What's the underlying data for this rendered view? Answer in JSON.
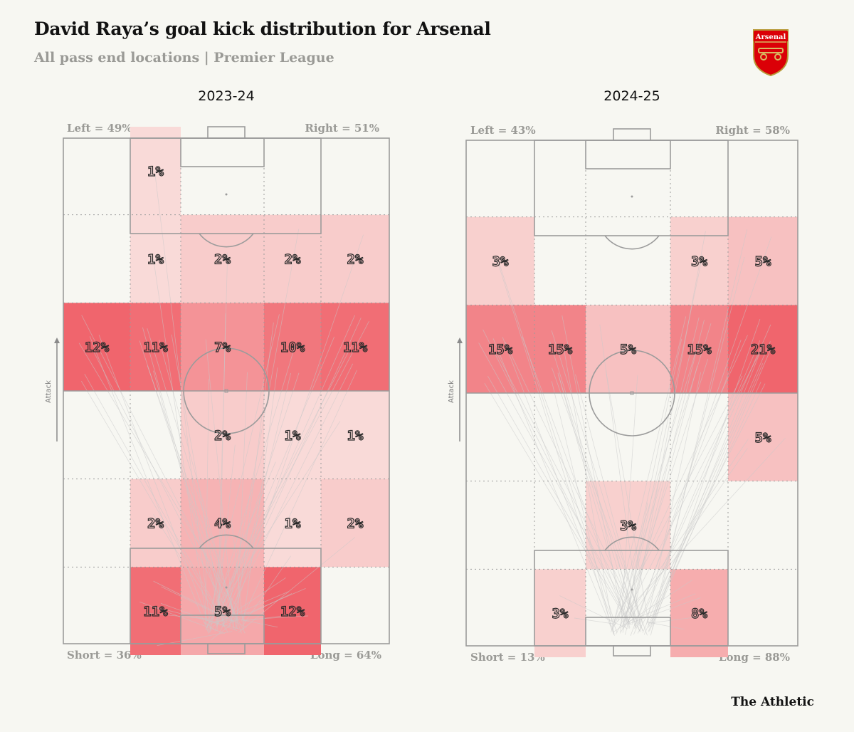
{
  "header": {
    "title": "David Raya’s goal kick distribution for Arsenal",
    "subtitle": "All pass end locations | Premier League",
    "badge_text": "Arsenal",
    "brand": "The Athletic",
    "attack_label": "Attack"
  },
  "colors": {
    "background": "#f7f7f2",
    "line": "#9b9b9b",
    "heat_max": "#f0656d",
    "heat_min": "#fbf0ec",
    "arrow": "#c9c9c9",
    "badge_red": "#db0007"
  },
  "chart_data": [
    {
      "type": "heatmap",
      "season": "2023-24",
      "left_label": "Left = 49%",
      "right_label": "Right = 51%",
      "short_label": "Short = 36%",
      "long_label": "Long = 64%",
      "columns": 5,
      "rows": 6,
      "row_order": "top (attacking end) to bottom (own goal)",
      "cells": [
        [
          "",
          "1%",
          "",
          "",
          ""
        ],
        [
          "",
          "1%",
          "2%",
          "2%",
          "2%"
        ],
        [
          "12%",
          "11%",
          "7%",
          "10%",
          "11%"
        ],
        [
          "",
          "",
          "2%",
          "1%",
          "1%"
        ],
        [
          "",
          "2%",
          "4%",
          "1%",
          "2%"
        ],
        [
          "",
          "11%",
          "5%",
          "12%",
          ""
        ]
      ]
    },
    {
      "type": "heatmap",
      "season": "2024-25",
      "left_label": "Left = 43%",
      "right_label": "Right = 58%",
      "short_label": "Short = 13%",
      "long_label": "Long = 88%",
      "columns": 5,
      "rows": 6,
      "row_order": "top (attacking end) to bottom (own goal)",
      "cells": [
        [
          "",
          "",
          "",
          "",
          ""
        ],
        [
          "3%",
          "",
          "",
          "3%",
          "5%"
        ],
        [
          "15%",
          "15%",
          "5%",
          "15%",
          "21%"
        ],
        [
          "",
          "",
          "",
          "",
          "5%"
        ],
        [
          "",
          "",
          "3%",
          "",
          ""
        ],
        [
          "",
          "3%",
          "",
          "8%",
          ""
        ]
      ]
    }
  ]
}
